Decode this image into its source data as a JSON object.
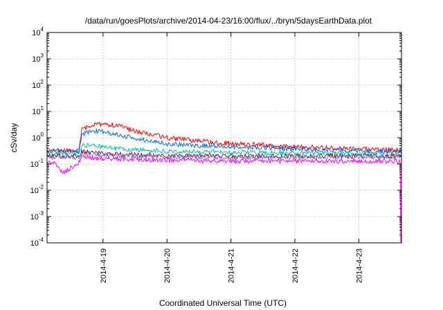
{
  "chart_data": {
    "type": "line",
    "title": "/data/run/goesPlots/archive/2014-04-23/16:00/flux/../bryn/5daysEarthData.plot",
    "xlabel": "Coordinated Universal Time (UTC)",
    "ylabel": "cSv/day",
    "yscale": "log",
    "ylim": [
      0.0001,
      10000
    ],
    "xlim": [
      "2014-04-18T03:00",
      "2014-04-23T16:00"
    ],
    "grid": true,
    "legend": "none",
    "x_ticks": [
      {
        "label": "2014-4-19",
        "x": "2014-04-19T00:00"
      },
      {
        "label": "2014-4-20",
        "x": "2014-04-20T00:00"
      },
      {
        "label": "2014-4-21",
        "x": "2014-04-21T00:00"
      },
      {
        "label": "2014-4-22",
        "x": "2014-04-22T00:00"
      },
      {
        "label": "2014-4-23",
        "x": "2014-04-23T00:00"
      }
    ],
    "y_ticks": [
      {
        "base": "10",
        "exp": "4",
        "value": 10000
      },
      {
        "base": "10",
        "exp": "3",
        "value": 1000
      },
      {
        "base": "10",
        "exp": "2",
        "value": 100
      },
      {
        "base": "10",
        "exp": "1",
        "value": 10
      },
      {
        "base": "10",
        "exp": "0",
        "value": 1
      },
      {
        "base": "10",
        "exp": "-1",
        "value": 0.1
      },
      {
        "base": "10",
        "exp": "-2",
        "value": 0.01
      },
      {
        "base": "10",
        "exp": "-3",
        "value": 0.001
      },
      {
        "base": "10",
        "exp": "-4",
        "value": 0.0001
      }
    ],
    "series": [
      {
        "color": "#ff0000",
        "x": [
          "2014-04-18T03:00",
          "2014-04-18T15:00",
          "2014-04-18T16:00",
          "2014-04-18T20:00",
          "2014-04-19T00:00",
          "2014-04-19T06:00",
          "2014-04-19T12:00",
          "2014-04-20T00:00",
          "2014-04-20T12:00",
          "2014-04-21T00:00",
          "2014-04-22T00:00",
          "2014-04-23T00:00",
          "2014-04-23T15:50"
        ],
        "y": [
          0.32,
          0.32,
          2.0,
          3.0,
          3.4,
          2.8,
          1.8,
          1.0,
          0.75,
          0.6,
          0.45,
          0.38,
          0.33
        ]
      },
      {
        "color": "#0066ff",
        "x": [
          "2014-04-18T03:00",
          "2014-04-18T15:00",
          "2014-04-18T16:00",
          "2014-04-18T20:00",
          "2014-04-19T00:00",
          "2014-04-19T06:00",
          "2014-04-19T12:00",
          "2014-04-20T00:00",
          "2014-04-20T12:00",
          "2014-04-21T00:00",
          "2014-04-22T00:00",
          "2014-04-23T00:00",
          "2014-04-23T15:50"
        ],
        "y": [
          0.3,
          0.3,
          1.3,
          1.8,
          1.7,
          1.3,
          0.95,
          0.6,
          0.5,
          0.45,
          0.38,
          0.33,
          0.3
        ]
      },
      {
        "color": "#00c0a0",
        "x": [
          "2014-04-18T03:00",
          "2014-04-18T15:00",
          "2014-04-18T16:00",
          "2014-04-18T20:00",
          "2014-04-19T06:00",
          "2014-04-20T00:00",
          "2014-04-21T00:00",
          "2014-04-22T00:00",
          "2014-04-23T00:00",
          "2014-04-23T15:50"
        ],
        "y": [
          0.25,
          0.25,
          0.55,
          0.5,
          0.38,
          0.3,
          0.28,
          0.26,
          0.25,
          0.25
        ]
      },
      {
        "color": "#8b1a1a",
        "x": [
          "2014-04-18T03:00",
          "2014-04-18T15:00",
          "2014-04-18T16:00",
          "2014-04-19T00:00",
          "2014-04-20T00:00",
          "2014-04-21T00:00",
          "2014-04-22T00:00",
          "2014-04-23T00:00",
          "2014-04-23T15:50"
        ],
        "y": [
          0.2,
          0.2,
          0.3,
          0.24,
          0.21,
          0.2,
          0.2,
          0.2,
          0.2
        ]
      },
      {
        "color": "#7070ff",
        "x": [
          "2014-04-18T03:00",
          "2014-04-18T15:00",
          "2014-04-18T16:00",
          "2014-04-19T00:00",
          "2014-04-20T00:00",
          "2014-04-21T00:00",
          "2014-04-22T00:00",
          "2014-04-23T00:00",
          "2014-04-23T15:50"
        ],
        "y": [
          0.18,
          0.18,
          0.27,
          0.22,
          0.19,
          0.18,
          0.18,
          0.18,
          0.18
        ]
      },
      {
        "color": "#ff00ff",
        "x": [
          "2014-04-18T03:00",
          "2014-04-18T06:00",
          "2014-04-18T09:00",
          "2014-04-18T15:00",
          "2014-04-18T16:00",
          "2014-04-19T00:00",
          "2014-04-20T00:00",
          "2014-04-21T00:00",
          "2014-04-22T00:00",
          "2014-04-23T00:00",
          "2014-04-23T15:30",
          "2014-04-23T16:00"
        ],
        "y": [
          0.12,
          0.12,
          0.045,
          0.12,
          0.2,
          0.16,
          0.14,
          0.13,
          0.13,
          0.13,
          0.13,
          0.0001
        ]
      }
    ]
  }
}
